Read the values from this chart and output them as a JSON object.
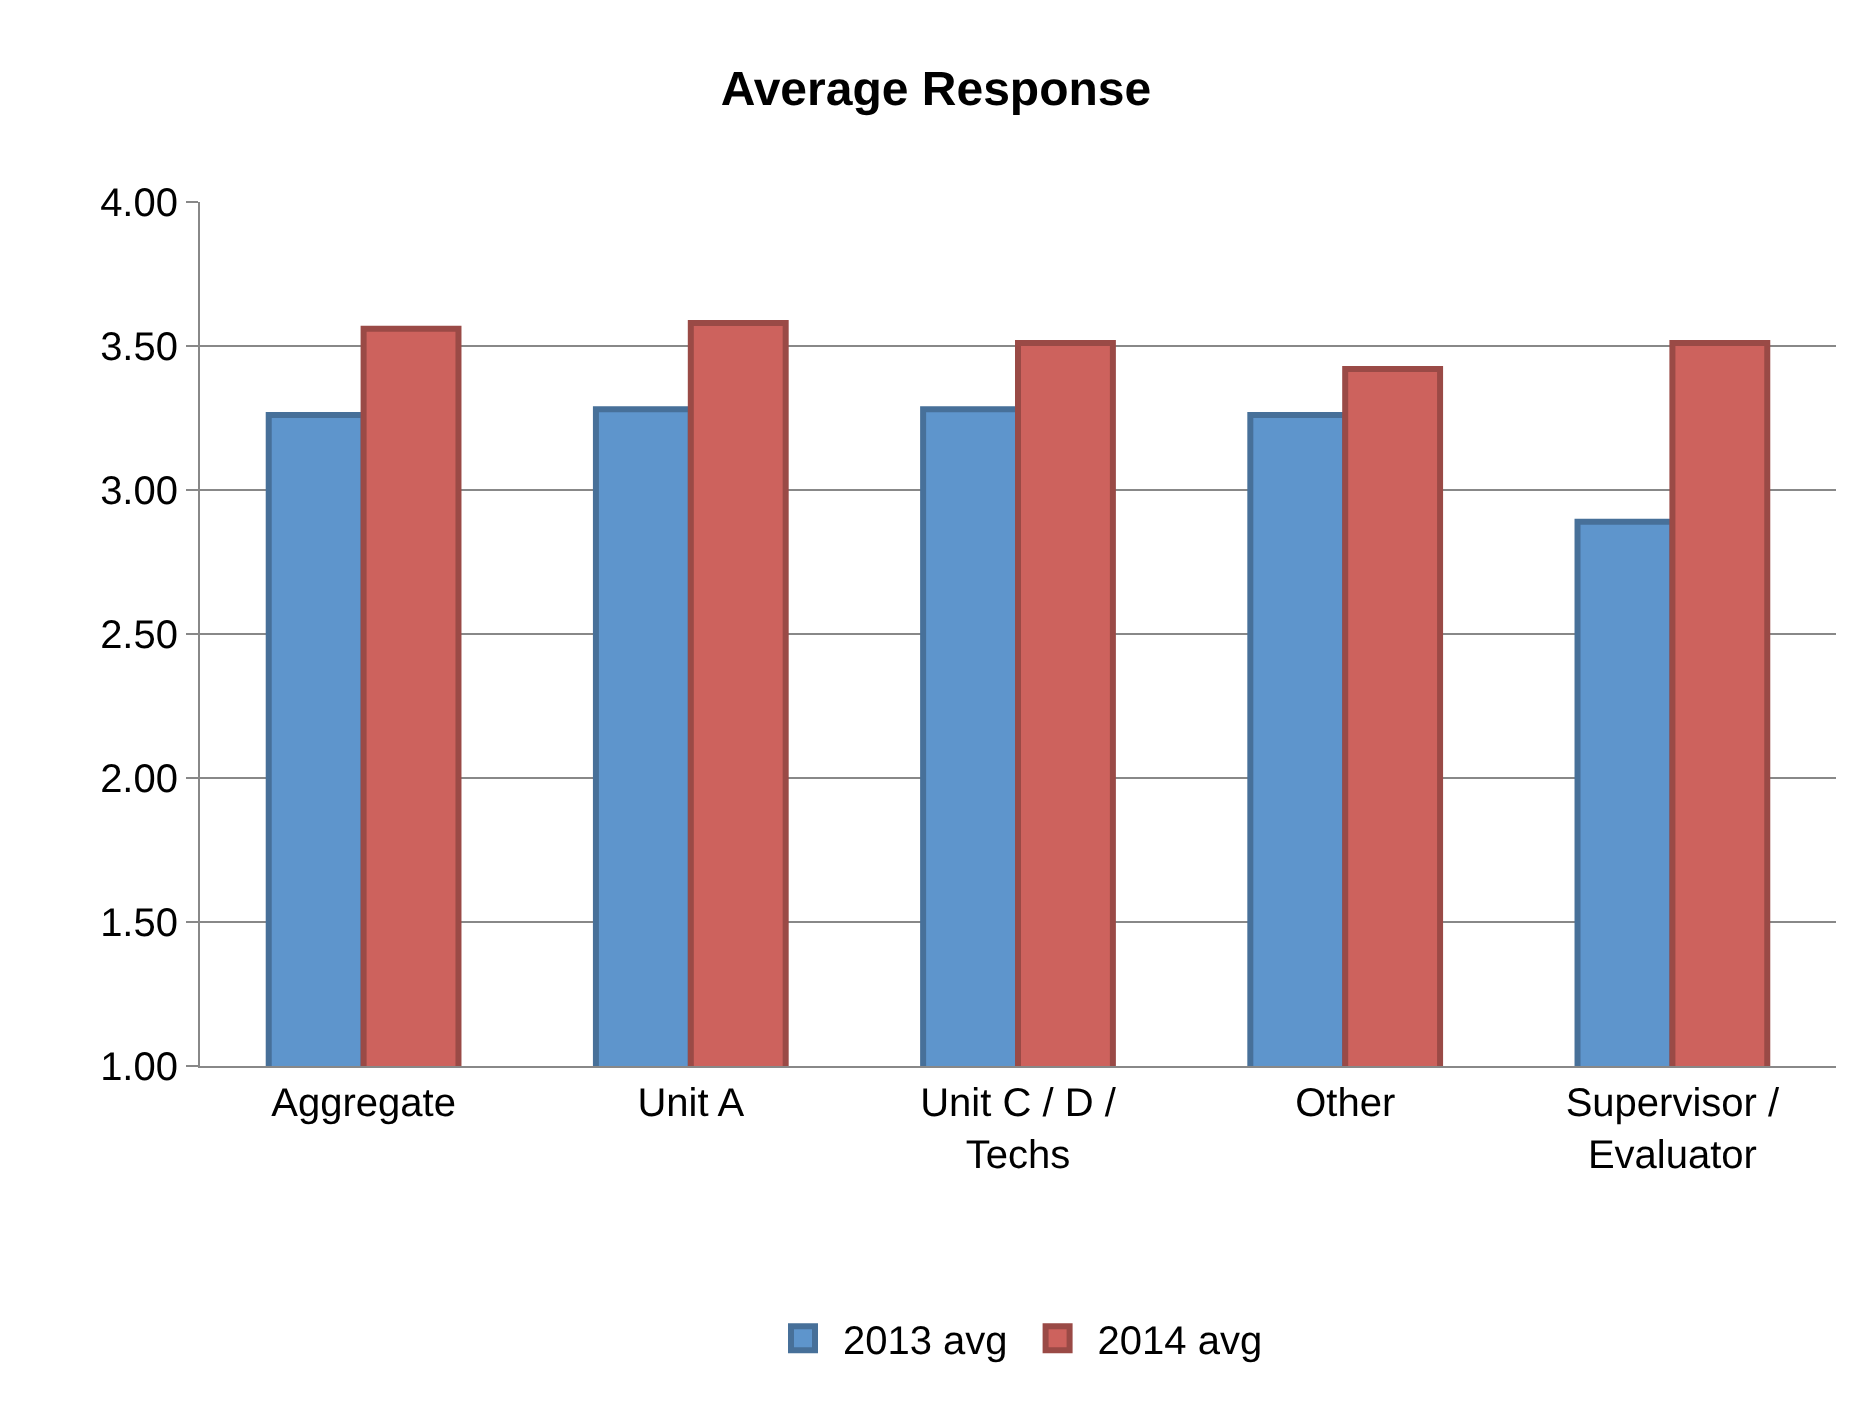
{
  "chart_data": {
    "type": "bar",
    "title": "Average Response",
    "categories": [
      "Aggregate",
      "Unit A",
      "Unit C / D /\nTechs",
      "Other",
      "Supervisor /\nEvaluator"
    ],
    "series": [
      {
        "name": "2013 avg",
        "color": "#5e95cc",
        "values": [
          3.26,
          3.28,
          3.28,
          3.26,
          2.89
        ]
      },
      {
        "name": "2014 avg",
        "color": "#cd625d",
        "values": [
          3.56,
          3.58,
          3.51,
          3.42,
          3.51
        ]
      }
    ],
    "ylim": [
      1,
      4
    ],
    "yticks": [
      {
        "value": 1,
        "label": "1.00"
      },
      {
        "value": 1.5,
        "label": "1.50"
      },
      {
        "value": 2,
        "label": "2.00"
      },
      {
        "value": 2.5,
        "label": "2.50"
      },
      {
        "value": 3,
        "label": "3.00"
      },
      {
        "value": 3.5,
        "label": "3.50"
      },
      {
        "value": 4,
        "label": "4.00"
      }
    ],
    "grid": "y",
    "legend": "bottom"
  }
}
